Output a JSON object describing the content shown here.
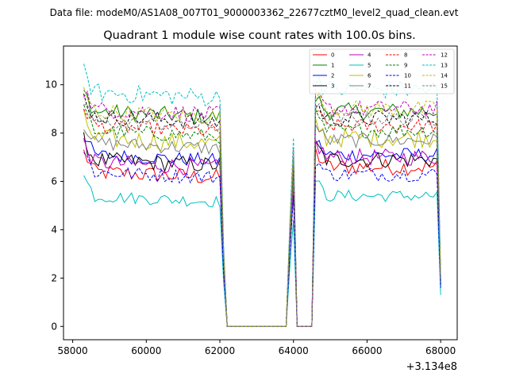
{
  "figure": {
    "suptitle": "Data file: modeM0/AS1A08_007T01_9000003362_22677cztM0_level2_quad_clean.evt",
    "offset_label": "+3.134e8"
  },
  "chart_data": {
    "type": "line",
    "title": "Quadrant 1 module wise count rates with 100.0s bins.",
    "xlabel": "",
    "ylabel": "",
    "x_offset": 313400000,
    "xlim": [
      57750,
      68450
    ],
    "ylim": [
      -0.55,
      11.6
    ],
    "xticks": [
      58000,
      60000,
      62000,
      64000,
      66000,
      68000
    ],
    "yticks": [
      0,
      2,
      4,
      6,
      8,
      10
    ],
    "xtick_labels": [
      "58000",
      "60000",
      "62000",
      "64000",
      "66000",
      "68000"
    ],
    "ytick_labels": [
      "0",
      "2",
      "4",
      "6",
      "8",
      "10"
    ],
    "grid": false,
    "legend_position": "top-right",
    "legend_columns": 4,
    "segments": [
      {
        "start": 58300,
        "end": 62000,
        "step": 100
      },
      {
        "transition": [
          62000,
          62100,
          62200
        ]
      },
      {
        "start": 62200,
        "end": 63800,
        "step": 100,
        "value": 0
      },
      {
        "spike": [
          63800,
          63900,
          64000,
          64100,
          64200
        ]
      },
      {
        "start": 64200,
        "end": 64500,
        "step": 100,
        "value": 0
      },
      {
        "start": 64600,
        "end": 67900,
        "step": 100
      },
      {
        "end_drop": [
          67900,
          68000
        ]
      }
    ],
    "series": [
      {
        "name": "0",
        "color": "#ff0000",
        "dash": "solid",
        "level_a": 6.4,
        "level_b": 6.6,
        "spike": 5.6,
        "end": 1.7,
        "amp": 0.35
      },
      {
        "name": "1",
        "color": "#008000",
        "dash": "solid",
        "level_a": 8.9,
        "level_b": 8.9,
        "spike": 7.0,
        "end": 2.0,
        "amp": 0.35
      },
      {
        "name": "2",
        "color": "#0000ff",
        "dash": "solid",
        "level_a": 7.1,
        "level_b": 7.1,
        "spike": 6.0,
        "end": 1.8,
        "amp": 0.3
      },
      {
        "name": "3",
        "color": "#000000",
        "dash": "solid",
        "level_a": 6.9,
        "level_b": 6.9,
        "spike": 5.8,
        "end": 1.6,
        "amp": 0.35
      },
      {
        "name": "4",
        "color": "#bf00bf",
        "dash": "solid",
        "level_a": 6.8,
        "level_b": 7.0,
        "spike": 5.9,
        "end": 1.8,
        "amp": 0.35
      },
      {
        "name": "5",
        "color": "#00bfbf",
        "dash": "solid",
        "level_a": 5.4,
        "level_b": 5.4,
        "spike": 4.4,
        "end": 1.3,
        "amp": 0.25
      },
      {
        "name": "6",
        "color": "#bfbf00",
        "dash": "solid",
        "level_a": 7.8,
        "level_b": 7.8,
        "spike": 6.5,
        "end": 1.8,
        "amp": 0.4
      },
      {
        "name": "7",
        "color": "#808080",
        "dash": "solid",
        "level_a": 7.6,
        "level_b": 7.7,
        "spike": 6.3,
        "end": 1.8,
        "amp": 0.3
      },
      {
        "name": "8",
        "color": "#ff0000",
        "dash": "dashed",
        "level_a": 8.3,
        "level_b": 8.3,
        "spike": 6.8,
        "end": 1.9,
        "amp": 0.3
      },
      {
        "name": "9",
        "color": "#008000",
        "dash": "dashed",
        "level_a": 8.1,
        "level_b": 8.1,
        "spike": 6.6,
        "end": 1.9,
        "amp": 0.3
      },
      {
        "name": "10",
        "color": "#0000ff",
        "dash": "dashed",
        "level_a": 6.4,
        "level_b": 6.3,
        "spike": 5.4,
        "end": 1.6,
        "amp": 0.3
      },
      {
        "name": "11",
        "color": "#000000",
        "dash": "dashed",
        "level_a": 8.7,
        "level_b": 8.6,
        "spike": 7.1,
        "end": 2.0,
        "amp": 0.35
      },
      {
        "name": "12",
        "color": "#bf00bf",
        "dash": "dashed",
        "level_a": 9.0,
        "level_b": 9.0,
        "spike": 7.3,
        "end": 2.0,
        "amp": 0.35
      },
      {
        "name": "13",
        "color": "#00bfbf",
        "dash": "dashed",
        "level_a": 9.7,
        "level_b": 9.8,
        "spike": 7.8,
        "end": 2.1,
        "amp": 0.4
      },
      {
        "name": "14",
        "color": "#bfbf00",
        "dash": "dashed",
        "level_a": 8.9,
        "level_b": 9.0,
        "spike": 7.2,
        "end": 2.0,
        "amp": 0.35
      },
      {
        "name": "15",
        "color": "#808080",
        "dash": "dashed",
        "level_a": 8.5,
        "level_b": 8.6,
        "spike": 7.0,
        "end": 1.9,
        "amp": 0.3
      }
    ]
  }
}
